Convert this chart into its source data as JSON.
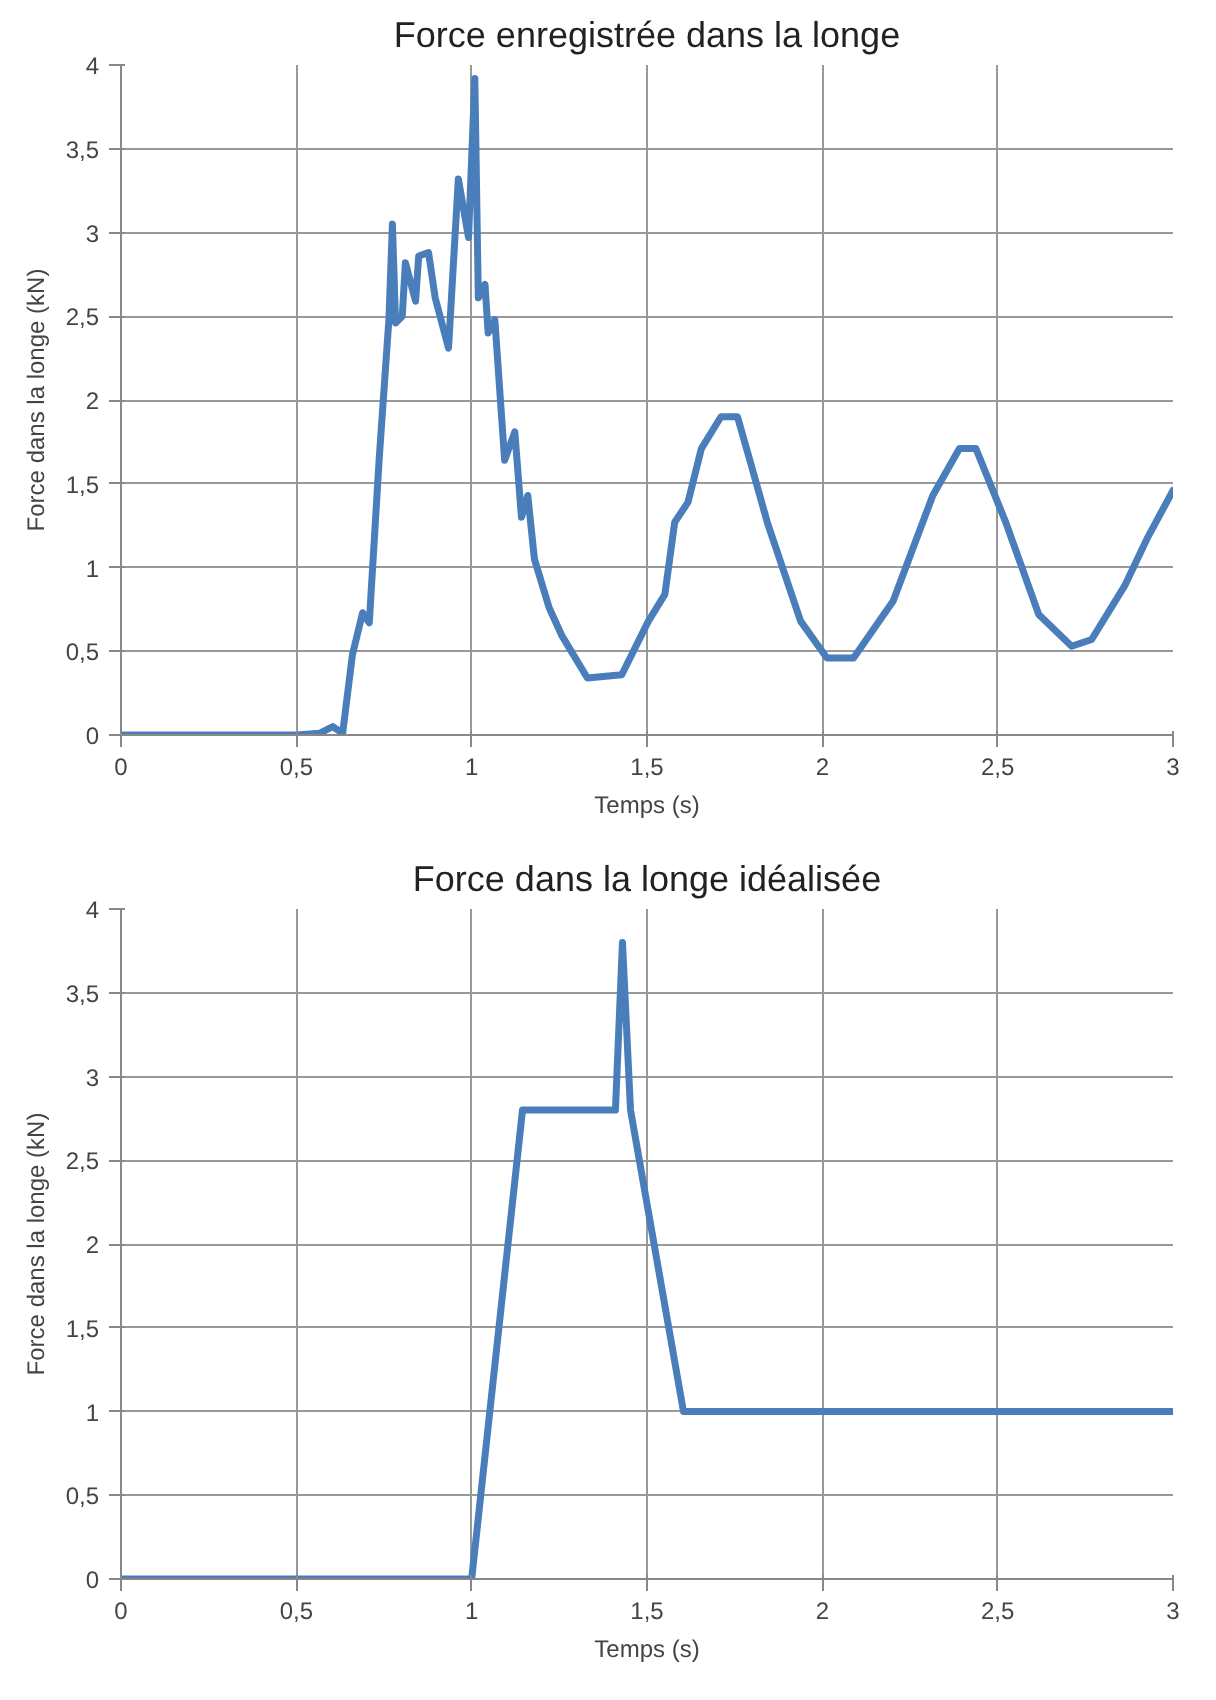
{
  "chart_data": [
    {
      "type": "line",
      "title": "Force enregistrée dans la longe",
      "xlabel": "Temps (s)",
      "ylabel": "Force dans la longe (kN)",
      "series": [
        {
          "color": "#4a7ebb",
          "x": [
            0,
            0.3,
            0.5,
            0.566,
            0.604,
            0.632,
            0.66,
            0.689,
            0.708,
            0.736,
            0.764,
            0.774,
            0.783,
            0.802,
            0.811,
            0.84,
            0.849,
            0.877,
            0.896,
            0.934,
            0.962,
            0.991,
            1.009,
            1.019,
            1.038,
            1.047,
            1.066,
            1.094,
            1.123,
            1.142,
            1.16,
            1.179,
            1.221,
            1.258,
            1.33,
            1.428,
            1.504,
            1.551,
            1.579,
            1.617,
            1.655,
            1.711,
            1.758,
            1.796,
            1.843,
            1.938,
            2.013,
            2.089,
            2.202,
            2.315,
            2.391,
            2.438,
            2.523,
            2.617,
            2.711,
            2.768,
            2.862,
            2.928,
            3.0
          ],
          "values": [
            0,
            0,
            0,
            0.01,
            0.05,
            0.01,
            0.48,
            0.73,
            0.67,
            1.64,
            2.48,
            3.05,
            2.46,
            2.5,
            2.82,
            2.59,
            2.86,
            2.88,
            2.61,
            2.31,
            3.32,
            2.97,
            3.92,
            2.61,
            2.69,
            2.4,
            2.48,
            1.64,
            1.81,
            1.3,
            1.43,
            1.05,
            0.76,
            0.59,
            0.34,
            0.36,
            0.68,
            0.84,
            1.27,
            1.39,
            1.71,
            1.9,
            1.9,
            1.62,
            1.27,
            0.68,
            0.46,
            0.46,
            0.8,
            1.43,
            1.71,
            1.71,
            1.27,
            0.72,
            0.53,
            0.57,
            0.89,
            1.18,
            1.46
          ]
        }
      ],
      "xlim": [
        0,
        3
      ],
      "ylim": [
        0,
        4
      ],
      "xticks": [
        0,
        {
          "value": 0.5,
          "label": "0,5"
        },
        1,
        {
          "value": 1.5,
          "label": "1,5"
        },
        2,
        {
          "value": 2.5,
          "label": "2,5"
        },
        3
      ],
      "yticks": [
        0,
        {
          "value": 0.5,
          "label": "0,5"
        },
        1,
        {
          "value": 1.5,
          "label": "1,5"
        },
        2,
        {
          "value": 2.5,
          "label": "2,5"
        },
        3,
        {
          "value": 3.5,
          "label": "3,5"
        },
        4
      ],
      "grid": true,
      "line_style": "solid"
    },
    {
      "type": "line",
      "title": "Force dans la longe idéalisée",
      "xlabel": "Temps (s)",
      "ylabel": "Force dans la longe (kN)",
      "series": [
        {
          "color": "#4a7ebb",
          "x": [
            0,
            1.0,
            1.145,
            1.41,
            1.43,
            1.453,
            1.604,
            3.0
          ],
          "values": [
            0,
            0,
            2.8,
            2.8,
            3.8,
            2.8,
            1,
            1
          ]
        }
      ],
      "xlim": [
        0,
        3
      ],
      "ylim": [
        0,
        4
      ],
      "xticks": [
        0,
        {
          "value": 0.5,
          "label": "0,5"
        },
        1,
        {
          "value": 1.5,
          "label": "1,5"
        },
        2,
        {
          "value": 2.5,
          "label": "2,5"
        },
        3
      ],
      "yticks": [
        0,
        {
          "value": 0.5,
          "label": "0,5"
        },
        1,
        {
          "value": 1.5,
          "label": "1,5"
        },
        2,
        {
          "value": 2.5,
          "label": "2,5"
        },
        3,
        {
          "value": 3.5,
          "label": "3,5"
        },
        4
      ],
      "grid": true,
      "line_style": "solid"
    }
  ]
}
